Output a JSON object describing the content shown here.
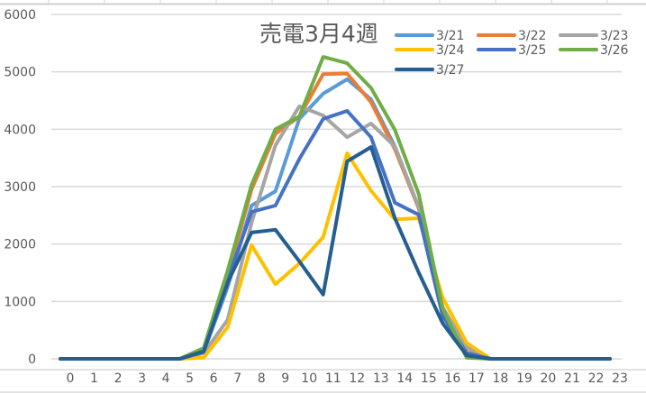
{
  "chart_data": {
    "type": "line",
    "title": "売電3月4週",
    "xlabel": "",
    "ylabel": "",
    "x": [
      0,
      1,
      2,
      3,
      4,
      5,
      6,
      7,
      8,
      9,
      10,
      11,
      12,
      13,
      14,
      15,
      16,
      17,
      18,
      19,
      20,
      21,
      22,
      23
    ],
    "yticks": [
      0,
      1000,
      2000,
      3000,
      4000,
      5000,
      6000
    ],
    "ylim": [
      0,
      6000
    ],
    "grid": true,
    "legend_position": "top-right",
    "series": [
      {
        "name": "3/21",
        "color": "#5B9BD5",
        "values": [
          0,
          0,
          0,
          0,
          0,
          0,
          120,
          1250,
          2670,
          2920,
          4180,
          4620,
          4870,
          4520,
          3700,
          2620,
          850,
          200,
          0,
          0,
          0,
          0,
          0,
          0
        ]
      },
      {
        "name": "3/22",
        "color": "#ED7D31",
        "values": [
          0,
          0,
          0,
          0,
          0,
          0,
          150,
          1450,
          2950,
          3920,
          4220,
          4960,
          4970,
          4470,
          3650,
          2620,
          880,
          180,
          0,
          0,
          0,
          0,
          0,
          0
        ]
      },
      {
        "name": "3/23",
        "color": "#A5A5A5",
        "values": [
          0,
          0,
          0,
          0,
          0,
          0,
          100,
          680,
          2370,
          3720,
          4400,
          4240,
          3860,
          4100,
          3700,
          2640,
          900,
          200,
          0,
          0,
          0,
          0,
          0,
          0
        ]
      },
      {
        "name": "3/24",
        "color": "#FFC000",
        "values": [
          0,
          0,
          0,
          0,
          0,
          0,
          20,
          550,
          1980,
          1300,
          1660,
          2120,
          3580,
          2930,
          2430,
          2450,
          1070,
          280,
          0,
          0,
          0,
          0,
          0,
          0
        ]
      },
      {
        "name": "3/25",
        "color": "#4472C4",
        "values": [
          0,
          0,
          0,
          0,
          0,
          0,
          120,
          1380,
          2560,
          2670,
          3480,
          4180,
          4320,
          3860,
          2720,
          2510,
          750,
          100,
          0,
          0,
          0,
          0,
          0,
          0
        ]
      },
      {
        "name": "3/26",
        "color": "#70AD47",
        "values": [
          0,
          0,
          0,
          0,
          0,
          0,
          190,
          1540,
          3030,
          4000,
          4220,
          5260,
          5150,
          4720,
          3990,
          2870,
          880,
          20,
          0,
          0,
          0,
          0,
          0,
          0
        ]
      },
      {
        "name": "3/27",
        "color": "#255E91",
        "values": [
          0,
          0,
          0,
          0,
          0,
          0,
          130,
          1330,
          2200,
          2250,
          1700,
          1120,
          3440,
          3690,
          2450,
          1500,
          620,
          60,
          0,
          0,
          0,
          0,
          0,
          0
        ]
      }
    ]
  }
}
